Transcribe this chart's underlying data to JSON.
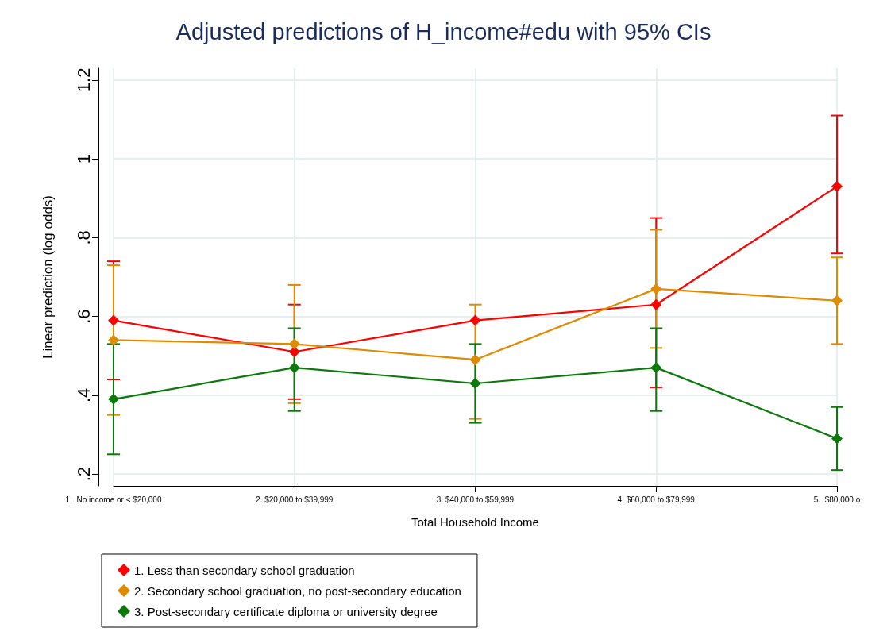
{
  "chart_data": {
    "type": "line",
    "title": "Adjusted predictions of H_income#edu with 95% CIs",
    "xlabel": "Total Household Income",
    "ylabel": "Linear prediction (log odds)",
    "categories": [
      "1.  No income or < $20,000",
      "2. $20,000 to $39,999",
      "3. $40,000 to $59,999",
      "4. $60,000 to $79,999",
      "5.  $80,000 o"
    ],
    "series": [
      {
        "name": "1. Less than secondary school graduation",
        "color": "#ff0000",
        "values": [
          0.59,
          0.51,
          0.59,
          0.63,
          0.93
        ],
        "errors": [
          [
            0.44,
            0.74
          ],
          [
            0.39,
            0.63
          ],
          null,
          [
            0.42,
            0.85
          ],
          [
            0.76,
            1.11
          ]
        ]
      },
      {
        "name": "2. Secondary school graduation, no post-secondary education",
        "color": "#e08a00",
        "values": [
          0.54,
          0.53,
          0.49,
          0.67,
          0.64
        ],
        "errors": [
          [
            0.35,
            0.73
          ],
          [
            0.38,
            0.68
          ],
          [
            0.34,
            0.63
          ],
          [
            0.52,
            0.82
          ],
          [
            0.53,
            0.75
          ]
        ]
      },
      {
        "name": "3. Post-secondary certificate diploma or university degree",
        "color": "#0b7a0b",
        "values": [
          0.39,
          0.47,
          0.43,
          0.47,
          0.29
        ],
        "errors": [
          [
            0.25,
            0.53
          ],
          [
            0.36,
            0.57
          ],
          [
            0.33,
            0.53
          ],
          [
            0.36,
            0.57
          ],
          [
            0.21,
            0.37
          ]
        ]
      }
    ],
    "ylim": [
      0.17,
      1.23
    ],
    "yticks": [
      {
        "value": 0.2,
        "label": ".2"
      },
      {
        "value": 0.4,
        "label": ".4"
      },
      {
        "value": 0.6,
        "label": ".6"
      },
      {
        "value": 0.8,
        "label": ".8"
      },
      1,
      {
        "value": 1.2,
        "label": "1.2"
      }
    ],
    "grid": true,
    "legend": "bottom",
    "marker": "diamond",
    "line_style": "solid"
  }
}
